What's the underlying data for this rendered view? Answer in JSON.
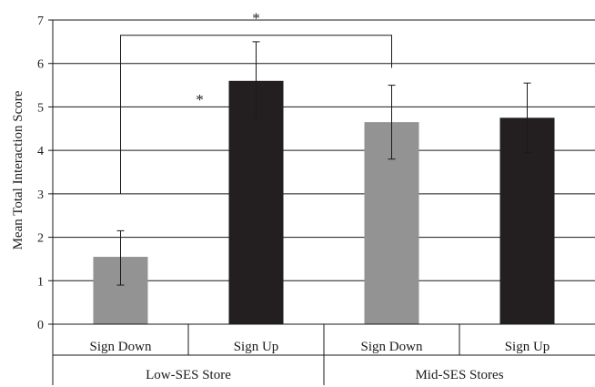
{
  "chart_data": {
    "type": "bar",
    "ylabel": "Mean Total Interaction Score",
    "ylim": [
      0,
      7
    ],
    "yticks": [
      0,
      1,
      2,
      3,
      4,
      5,
      6,
      7
    ],
    "grid": true,
    "groups": [
      {
        "label": "Low-SES Store",
        "bars": [
          {
            "label": "Sign Down",
            "value": 1.55,
            "err_low": 0.9,
            "err_high": 2.15,
            "color": "#939393"
          },
          {
            "label": "Sign Up",
            "value": 5.6,
            "err_low": 4.7,
            "err_high": 6.5,
            "color": "#231f20"
          }
        ]
      },
      {
        "label": "Mid-SES Stores",
        "bars": [
          {
            "label": "Sign Down",
            "value": 4.65,
            "err_low": 3.8,
            "err_high": 5.5,
            "color": "#939393"
          },
          {
            "label": "Sign Up",
            "value": 4.75,
            "err_low": 3.95,
            "err_high": 5.55,
            "color": "#231f20"
          }
        ]
      }
    ],
    "annotations": [
      {
        "type": "bracket",
        "label": "*",
        "from_bar": 0,
        "to_bar": 2
      },
      {
        "type": "star",
        "label": "*",
        "near_bar": 1
      }
    ]
  }
}
